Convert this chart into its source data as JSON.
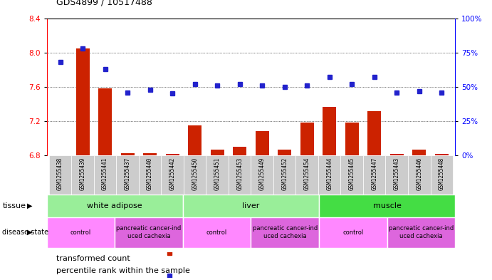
{
  "title": "GDS4899 / 10517488",
  "samples": [
    "GSM1255438",
    "GSM1255439",
    "GSM1255441",
    "GSM1255437",
    "GSM1255440",
    "GSM1255442",
    "GSM1255450",
    "GSM1255451",
    "GSM1255453",
    "GSM1255449",
    "GSM1255452",
    "GSM1255454",
    "GSM1255444",
    "GSM1255445",
    "GSM1255447",
    "GSM1255443",
    "GSM1255446",
    "GSM1255448"
  ],
  "transformed_count": [
    6.8,
    8.05,
    7.58,
    6.83,
    6.83,
    6.82,
    7.15,
    6.87,
    6.9,
    7.08,
    6.87,
    7.18,
    7.37,
    7.18,
    7.32,
    6.82,
    6.87,
    6.82
  ],
  "percentile_rank": [
    68,
    78,
    63,
    46,
    48,
    45,
    52,
    51,
    52,
    51,
    50,
    51,
    57,
    52,
    57,
    46,
    47,
    46
  ],
  "ylim_left": [
    6.8,
    8.4
  ],
  "ylim_right": [
    0,
    100
  ],
  "yticks_left": [
    6.8,
    7.2,
    7.6,
    8.0,
    8.4
  ],
  "yticks_right": [
    0,
    25,
    50,
    75,
    100
  ],
  "ytick_labels_right": [
    "0%",
    "25%",
    "50%",
    "75%",
    "100%"
  ],
  "bar_color": "#CC2200",
  "dot_color": "#2222CC",
  "bar_width": 0.6,
  "tissue_groups": [
    {
      "label": "white adipose",
      "start": 0,
      "end": 6,
      "color": "#99EE99"
    },
    {
      "label": "liver",
      "start": 6,
      "end": 12,
      "color": "#99EE99"
    },
    {
      "label": "muscle",
      "start": 12,
      "end": 18,
      "color": "#44DD44"
    }
  ],
  "disease_groups": [
    {
      "label": "control",
      "start": 0,
      "end": 3,
      "color": "#FF88FF"
    },
    {
      "label": "pancreatic cancer-ind\nuced cachexia",
      "start": 3,
      "end": 6,
      "color": "#DD66DD"
    },
    {
      "label": "control",
      "start": 6,
      "end": 9,
      "color": "#FF88FF"
    },
    {
      "label": "pancreatic cancer-ind\nuced cachexia",
      "start": 9,
      "end": 12,
      "color": "#DD66DD"
    },
    {
      "label": "control",
      "start": 12,
      "end": 15,
      "color": "#FF88FF"
    },
    {
      "label": "pancreatic cancer-ind\nuced cachexia",
      "start": 15,
      "end": 18,
      "color": "#DD66DD"
    }
  ],
  "label_row_bg": "#CCCCCC",
  "plot_bg": "#FFFFFF"
}
